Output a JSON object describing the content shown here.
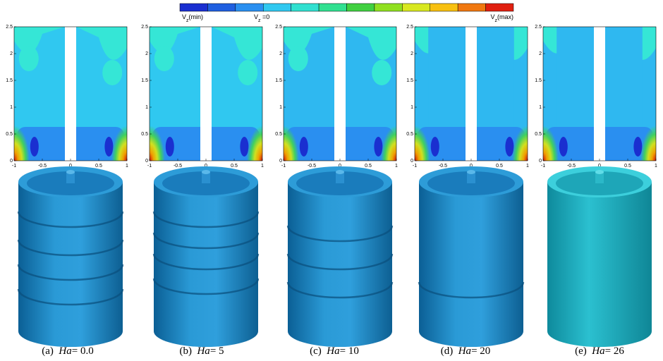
{
  "colorbar": {
    "labels": [
      {
        "symbol": "V",
        "subscript": "z",
        "text": "(min)"
      },
      {
        "symbol": "V",
        "subscript": "z",
        "text": " =0"
      },
      {
        "symbol": "V",
        "subscript": "z",
        "text": "(max)"
      }
    ]
  },
  "axes": {
    "yticks": [
      0,
      0.5,
      1,
      1.5,
      2,
      2.5
    ],
    "ylim": [
      0,
      2.5
    ],
    "xticks": [
      -1,
      -0.5,
      0,
      0.5,
      1
    ],
    "xlim": [
      -1,
      1
    ]
  },
  "panels": [
    {
      "prefix": "(a)",
      "symbol": "Ha",
      "rest": "= 0.0"
    },
    {
      "prefix": "(b)",
      "symbol": "Ha",
      "rest": "= 5"
    },
    {
      "prefix": "(c)",
      "symbol": "Ha",
      "rest": "= 10"
    },
    {
      "prefix": "(d)",
      "symbol": "Ha",
      "rest": "= 20"
    },
    {
      "prefix": "(e)",
      "symbol": "Ha",
      "rest": "= 26"
    }
  ]
}
